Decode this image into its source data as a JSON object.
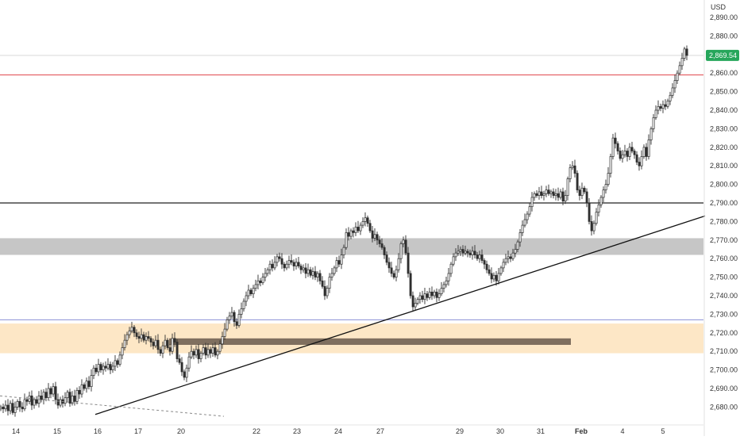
{
  "chart_data": {
    "type": "candlestick",
    "currency": "USD",
    "current_price_label": "2,869.54",
    "y_ticks": [
      "2,890.00",
      "2,880.00",
      "2,870.00",
      "2,860.00",
      "2,850.00",
      "2,840.00",
      "2,830.00",
      "2,820.00",
      "2,810.00",
      "2,800.00",
      "2,790.00",
      "2,780.00",
      "2,770.00",
      "2,760.00",
      "2,750.00",
      "2,740.00",
      "2,730.00",
      "2,720.00",
      "2,710.00",
      "2,700.00",
      "2,690.00",
      "2,680.00"
    ],
    "x_ticks": [
      "14",
      "15",
      "16",
      "17",
      "20",
      "22",
      "23",
      "24",
      "27",
      "29",
      "30",
      "31",
      "Feb",
      "4",
      "5"
    ],
    "colors": {
      "up": "#2e2e2e",
      "down": "#2e2e2e",
      "price_badge": "#26a65b",
      "red_line": "#e0484f",
      "purple_line": "#8a8fd6",
      "zone_gray": "#c6c6c6",
      "zone_orange": "#fde7c6",
      "zone_brown": "#7f6f5f"
    },
    "levels": {
      "red_horizontal": 2859,
      "black_horizontal": 2790,
      "purple_horizontal": 2727,
      "current_price": 2869.54
    },
    "zones": {
      "gray": [
        2762,
        2771
      ],
      "orange": [
        2709,
        2725
      ],
      "brown_band": [
        2713.5,
        2717
      ]
    },
    "candles_close_path": [
      [
        0,
        2680
      ],
      [
        3,
        2679
      ],
      [
        6,
        2681
      ],
      [
        9,
        2678
      ],
      [
        12,
        2682
      ],
      [
        15,
        2677
      ],
      [
        18,
        2680
      ],
      [
        21,
        2683
      ],
      [
        24,
        2680
      ],
      [
        27,
        2679
      ],
      [
        30,
        2684
      ],
      [
        33,
        2683
      ],
      [
        36,
        2686
      ],
      [
        39,
        2681
      ],
      [
        42,
        2684
      ],
      [
        45,
        2682
      ],
      [
        48,
        2686
      ],
      [
        51,
        2684
      ],
      [
        54,
        2688
      ],
      [
        57,
        2685
      ],
      [
        60,
        2690
      ],
      [
        63,
        2687
      ],
      [
        66,
        2691
      ],
      [
        69,
        2684
      ],
      [
        72,
        2681
      ],
      [
        75,
        2684
      ],
      [
        78,
        2682
      ],
      [
        81,
        2685
      ],
      [
        84,
        2688
      ],
      [
        87,
        2682
      ],
      [
        90,
        2686
      ],
      [
        93,
        2683
      ],
      [
        96,
        2689
      ],
      [
        99,
        2687
      ],
      [
        102,
        2692
      ],
      [
        105,
        2690
      ],
      [
        108,
        2694
      ],
      [
        111,
        2691
      ],
      [
        114,
        2697
      ],
      [
        117,
        2701
      ],
      [
        120,
        2699
      ],
      [
        123,
        2703
      ],
      [
        126,
        2700
      ],
      [
        129,
        2702
      ],
      [
        132,
        2701
      ],
      [
        135,
        2703
      ],
      [
        138,
        2700
      ],
      [
        141,
        2702
      ],
      [
        144,
        2705
      ],
      [
        147,
        2703
      ],
      [
        150,
        2708
      ],
      [
        153,
        2712
      ],
      [
        156,
        2716
      ],
      [
        159,
        2719
      ],
      [
        162,
        2721
      ],
      [
        165,
        2723
      ],
      [
        168,
        2720
      ],
      [
        171,
        2718
      ],
      [
        174,
        2717
      ],
      [
        177,
        2719
      ],
      [
        180,
        2716
      ],
      [
        183,
        2718
      ],
      [
        186,
        2717
      ],
      [
        189,
        2715
      ],
      [
        192,
        2713
      ],
      [
        195,
        2716
      ],
      [
        198,
        2711
      ],
      [
        201,
        2709
      ],
      [
        204,
        2713
      ],
      [
        207,
        2716
      ],
      [
        210,
        2712
      ],
      [
        213,
        2710
      ],
      [
        216,
        2717
      ],
      [
        219,
        2715
      ],
      [
        222,
        2706
      ],
      [
        225,
        2704
      ],
      [
        228,
        2699
      ],
      [
        231,
        2696
      ],
      [
        234,
        2701
      ],
      [
        237,
        2707
      ],
      [
        240,
        2710
      ],
      [
        243,
        2708
      ],
      [
        246,
        2711
      ],
      [
        249,
        2706
      ],
      [
        252,
        2709
      ],
      [
        255,
        2712
      ],
      [
        258,
        2708
      ],
      [
        261,
        2711
      ],
      [
        264,
        2709
      ],
      [
        267,
        2712
      ],
      [
        270,
        2708
      ],
      [
        273,
        2710
      ],
      [
        276,
        2714
      ],
      [
        279,
        2718
      ],
      [
        282,
        2722
      ],
      [
        285,
        2727
      ],
      [
        288,
        2729
      ],
      [
        291,
        2731
      ],
      [
        294,
        2726
      ],
      [
        297,
        2724
      ],
      [
        300,
        2730
      ],
      [
        303,
        2733
      ],
      [
        306,
        2737
      ],
      [
        309,
        2740
      ],
      [
        312,
        2743
      ],
      [
        315,
        2741
      ],
      [
        318,
        2744
      ],
      [
        321,
        2746
      ],
      [
        324,
        2748
      ],
      [
        327,
        2747
      ],
      [
        330,
        2750
      ],
      [
        333,
        2752
      ],
      [
        336,
        2754
      ],
      [
        339,
        2757
      ],
      [
        342,
        2755
      ],
      [
        345,
        2758
      ],
      [
        348,
        2761
      ],
      [
        351,
        2760
      ],
      [
        354,
        2757
      ],
      [
        357,
        2755
      ],
      [
        360,
        2757
      ],
      [
        363,
        2759
      ],
      [
        366,
        2758
      ],
      [
        369,
        2756
      ],
      [
        372,
        2758
      ],
      [
        375,
        2756
      ],
      [
        378,
        2754
      ],
      [
        381,
        2755
      ],
      [
        384,
        2752
      ],
      [
        387,
        2754
      ],
      [
        390,
        2751
      ],
      [
        393,
        2753
      ],
      [
        396,
        2750
      ],
      [
        399,
        2752
      ],
      [
        402,
        2748
      ],
      [
        405,
        2745
      ],
      [
        408,
        2740
      ],
      [
        411,
        2744
      ],
      [
        414,
        2750
      ],
      [
        417,
        2752
      ],
      [
        420,
        2755
      ],
      [
        423,
        2759
      ],
      [
        426,
        2757
      ],
      [
        429,
        2762
      ],
      [
        432,
        2766
      ],
      [
        435,
        2774
      ],
      [
        438,
        2772
      ],
      [
        441,
        2775
      ],
      [
        444,
        2774
      ],
      [
        447,
        2777
      ],
      [
        450,
        2775
      ],
      [
        453,
        2778
      ],
      [
        456,
        2780
      ],
      [
        459,
        2782
      ],
      [
        462,
        2779
      ],
      [
        465,
        2775
      ],
      [
        468,
        2771
      ],
      [
        471,
        2773
      ],
      [
        474,
        2770
      ],
      [
        477,
        2768
      ],
      [
        480,
        2766
      ],
      [
        483,
        2762
      ],
      [
        486,
        2758
      ],
      [
        489,
        2755
      ],
      [
        492,
        2752
      ],
      [
        495,
        2750
      ],
      [
        498,
        2754
      ],
      [
        501,
        2760
      ],
      [
        504,
        2768
      ],
      [
        507,
        2770
      ],
      [
        510,
        2763
      ],
      [
        513,
        2752
      ],
      [
        516,
        2740
      ],
      [
        519,
        2734
      ],
      [
        522,
        2736
      ],
      [
        525,
        2738
      ],
      [
        528,
        2740
      ],
      [
        531,
        2738
      ],
      [
        534,
        2741
      ],
      [
        537,
        2739
      ],
      [
        540,
        2742
      ],
      [
        543,
        2740
      ],
      [
        546,
        2742
      ],
      [
        549,
        2739
      ],
      [
        552,
        2741
      ],
      [
        555,
        2744
      ],
      [
        558,
        2746
      ],
      [
        561,
        2748
      ],
      [
        564,
        2752
      ],
      [
        567,
        2757
      ],
      [
        570,
        2761
      ],
      [
        573,
        2763
      ],
      [
        576,
        2764
      ],
      [
        579,
        2765
      ],
      [
        582,
        2763
      ],
      [
        585,
        2764
      ],
      [
        588,
        2763
      ],
      [
        591,
        2762
      ],
      [
        594,
        2764
      ],
      [
        597,
        2762
      ],
      [
        600,
        2760
      ],
      [
        603,
        2762
      ],
      [
        606,
        2759
      ],
      [
        609,
        2757
      ],
      [
        612,
        2754
      ],
      [
        615,
        2752
      ],
      [
        618,
        2749
      ],
      [
        621,
        2751
      ],
      [
        624,
        2748
      ],
      [
        627,
        2752
      ],
      [
        630,
        2755
      ],
      [
        633,
        2758
      ],
      [
        636,
        2760
      ],
      [
        639,
        2761
      ],
      [
        642,
        2760
      ],
      [
        645,
        2763
      ],
      [
        648,
        2765
      ],
      [
        651,
        2769
      ],
      [
        654,
        2774
      ],
      [
        657,
        2778
      ],
      [
        660,
        2781
      ],
      [
        663,
        2784
      ],
      [
        666,
        2788
      ],
      [
        669,
        2793
      ],
      [
        672,
        2795
      ],
      [
        675,
        2794
      ],
      [
        678,
        2796
      ],
      [
        681,
        2794
      ],
      [
        684,
        2795
      ],
      [
        687,
        2797
      ],
      [
        690,
        2795
      ],
      [
        693,
        2796
      ],
      [
        696,
        2794
      ],
      [
        699,
        2795
      ],
      [
        702,
        2793
      ],
      [
        705,
        2796
      ],
      [
        708,
        2791
      ],
      [
        711,
        2794
      ],
      [
        714,
        2803
      ],
      [
        717,
        2809
      ],
      [
        720,
        2810
      ],
      [
        723,
        2806
      ],
      [
        726,
        2797
      ],
      [
        729,
        2794
      ],
      [
        732,
        2798
      ],
      [
        735,
        2796
      ],
      [
        738,
        2790
      ],
      [
        741,
        2780
      ],
      [
        744,
        2775
      ],
      [
        747,
        2779
      ],
      [
        750,
        2785
      ],
      [
        753,
        2789
      ],
      [
        756,
        2793
      ],
      [
        759,
        2797
      ],
      [
        762,
        2800
      ],
      [
        765,
        2806
      ],
      [
        768,
        2815
      ],
      [
        771,
        2825
      ],
      [
        774,
        2822
      ],
      [
        777,
        2818
      ],
      [
        780,
        2814
      ],
      [
        783,
        2816
      ],
      [
        786,
        2818
      ],
      [
        789,
        2815
      ],
      [
        792,
        2820
      ],
      [
        795,
        2818
      ],
      [
        798,
        2816
      ],
      [
        801,
        2812
      ],
      [
        804,
        2810
      ],
      [
        807,
        2815
      ],
      [
        810,
        2820
      ],
      [
        813,
        2815
      ],
      [
        816,
        2824
      ],
      [
        819,
        2830
      ],
      [
        822,
        2836
      ],
      [
        825,
        2840
      ],
      [
        828,
        2842
      ],
      [
        831,
        2841
      ],
      [
        834,
        2843
      ],
      [
        837,
        2842
      ],
      [
        840,
        2845
      ],
      [
        843,
        2848
      ],
      [
        846,
        2852
      ],
      [
        849,
        2856
      ],
      [
        852,
        2860
      ],
      [
        855,
        2864
      ],
      [
        858,
        2868
      ],
      [
        861,
        2873
      ],
      [
        864,
        2869.54
      ]
    ],
    "trendline": {
      "from_slot": 120,
      "from_price": 2676,
      "to_slot": 888,
      "to_price": 2783
    },
    "dashed_line": {
      "from_slot": 0,
      "from_price": 2686,
      "to_slot": 282,
      "to_price": 2675
    },
    "brown_band_span": {
      "from_slot": 213,
      "to_slot": 719
    }
  }
}
